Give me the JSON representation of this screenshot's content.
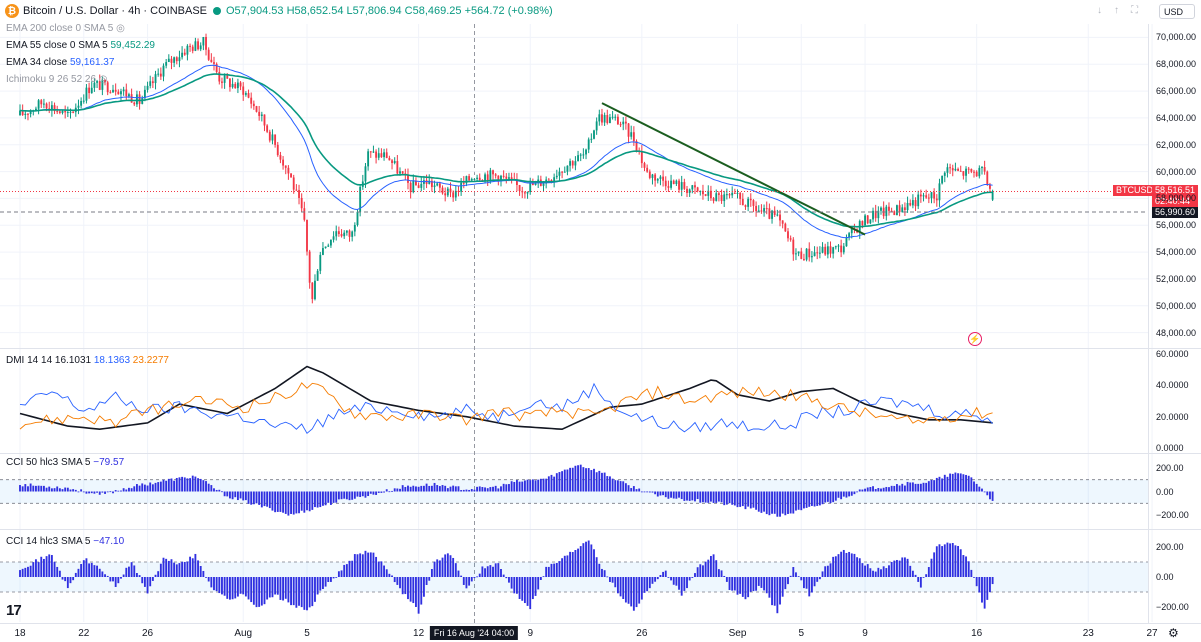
{
  "header": {
    "symbol_title": "Bitcoin / U.S. Dollar · 4h · COINBASE",
    "open": "O57,904.53",
    "high": "H58,652.54",
    "low": "L57,806.94",
    "close": "C58,469.25",
    "change": "+564.72 (+0.98%)",
    "currency": "USD",
    "icons": [
      "arrow-down-icon",
      "arrow-up-icon",
      "fullscreen-icon",
      "maximize-icon"
    ]
  },
  "legend": {
    "ema200": "EMA 200 close 0 SMA 5",
    "ema55_label": "EMA 55 close 0 SMA 5",
    "ema55_value": "59,452.29",
    "ema34_label": "EMA 34 close",
    "ema34_value": "59,161.37",
    "ichimoku": "Ichimoku 9 26 52 26"
  },
  "price_tags": {
    "symbol": "BTCUSD",
    "last_price": "58,516.51",
    "countdown": "02:40:44",
    "level": "56,990.60"
  },
  "dmi": {
    "title": "DMI 14 14",
    "adx": "16.1031",
    "plus_di": "18.1363",
    "minus_di": "23.2277"
  },
  "cci50": {
    "title": "CCI 50 hlc3 SMA 5",
    "value": "−79.57"
  },
  "cci14": {
    "title": "CCI 14 hlc3 SMA 5",
    "value": "−47.10"
  },
  "x_axis": {
    "ticks": [
      {
        "label": "18",
        "day": 0
      },
      {
        "label": "22",
        "day": 4
      },
      {
        "label": "26",
        "day": 8
      },
      {
        "label": "Aug",
        "day": 14
      },
      {
        "label": "5",
        "day": 18
      },
      {
        "label": "12",
        "day": 25
      },
      {
        "label": "9",
        "day": 32
      },
      {
        "label": "26",
        "day": 39
      },
      {
        "label": "Sep",
        "day": 45
      },
      {
        "label": "5",
        "day": 49
      },
      {
        "label": "9",
        "day": 53
      },
      {
        "label": "16",
        "day": 60
      },
      {
        "label": "23",
        "day": 67
      },
      {
        "label": "27",
        "day": 71
      }
    ],
    "cursor_label": "Fri 16 Aug '24   04:00"
  },
  "colors": {
    "up": "#089981",
    "down": "#f23645",
    "ema55": "#089981",
    "ema34": "#2962ff",
    "trendline": "#1b5e20",
    "adx": "#131722",
    "plus_di": "#2962ff",
    "minus_di": "#f57c00",
    "cci": "#2f2fe0"
  },
  "chart_data": [
    {
      "type": "candlestick",
      "title": "Bitcoin / U.S. Dollar · 4h · COINBASE",
      "ylim": [
        47000,
        71000
      ],
      "y_ticks": [
        "70,000.00",
        "68,000.00",
        "66,000.00",
        "64,000.00",
        "62,000.00",
        "60,000.00",
        "58,000.00",
        "56,000.00",
        "54,000.00",
        "52,000.00",
        "50,000.00",
        "48,000.00"
      ],
      "x_range_days": [
        0,
        72
      ],
      "anchors": [
        {
          "day": 0.0,
          "close": 64200
        },
        {
          "day": 1.5,
          "close": 65200
        },
        {
          "day": 3.0,
          "close": 64100
        },
        {
          "day": 4.5,
          "close": 66500
        },
        {
          "day": 6.0,
          "close": 66300
        },
        {
          "day": 7.5,
          "close": 65200
        },
        {
          "day": 9.0,
          "close": 67800
        },
        {
          "day": 10.5,
          "close": 69200
        },
        {
          "day": 11.5,
          "close": 69600
        },
        {
          "day": 12.5,
          "close": 67000
        },
        {
          "day": 14.0,
          "close": 66100
        },
        {
          "day": 15.0,
          "close": 64300
        },
        {
          "day": 16.0,
          "close": 62000
        },
        {
          "day": 17.0,
          "close": 59500
        },
        {
          "day": 17.8,
          "close": 56500
        },
        {
          "day": 18.3,
          "close": 50200
        },
        {
          "day": 18.8,
          "close": 54000
        },
        {
          "day": 19.8,
          "close": 55600
        },
        {
          "day": 20.8,
          "close": 55200
        },
        {
          "day": 21.8,
          "close": 61300
        },
        {
          "day": 23.0,
          "close": 61200
        },
        {
          "day": 24.5,
          "close": 58800
        },
        {
          "day": 25.5,
          "close": 59300
        },
        {
          "day": 27.0,
          "close": 58200
        },
        {
          "day": 28.5,
          "close": 59800
        },
        {
          "day": 30.0,
          "close": 59700
        },
        {
          "day": 31.5,
          "close": 58700
        },
        {
          "day": 33.0,
          "close": 59400
        },
        {
          "day": 34.5,
          "close": 60700
        },
        {
          "day": 35.5,
          "close": 61300
        },
        {
          "day": 36.2,
          "close": 64100
        },
        {
          "day": 37.5,
          "close": 63800
        },
        {
          "day": 38.5,
          "close": 62500
        },
        {
          "day": 39.3,
          "close": 59900
        },
        {
          "day": 40.5,
          "close": 59300
        },
        {
          "day": 42.0,
          "close": 58700
        },
        {
          "day": 43.5,
          "close": 58100
        },
        {
          "day": 45.0,
          "close": 58000
        },
        {
          "day": 46.5,
          "close": 57000
        },
        {
          "day": 47.5,
          "close": 56500
        },
        {
          "day": 48.7,
          "close": 53800
        },
        {
          "day": 50.0,
          "close": 54000
        },
        {
          "day": 51.5,
          "close": 54300
        },
        {
          "day": 52.5,
          "close": 55900
        },
        {
          "day": 53.5,
          "close": 56800
        },
        {
          "day": 55.0,
          "close": 57200
        },
        {
          "day": 56.5,
          "close": 58000
        },
        {
          "day": 57.5,
          "close": 58200
        },
        {
          "day": 58.0,
          "close": 60300
        },
        {
          "day": 59.0,
          "close": 59900
        },
        {
          "day": 60.3,
          "close": 60000
        },
        {
          "day": 61.0,
          "close": 58469.25
        }
      ],
      "last": {
        "open": 57904.53,
        "high": 58652.54,
        "low": 57806.94,
        "close": 58469.25
      },
      "trendline": [
        {
          "day": 36.5,
          "price": 65100
        },
        {
          "day": 53.0,
          "price": 55300
        }
      ],
      "horizontal_levels": [
        56990.6,
        58516.51
      ],
      "series": [
        {
          "name": "EMA 55",
          "value": 59452.29
        },
        {
          "name": "EMA 34",
          "value": 59161.37
        }
      ]
    },
    {
      "type": "line",
      "title": "DMI 14 14",
      "ylim": [
        0,
        60
      ],
      "y_ticks": [
        "60.0000",
        "40.0000",
        "20.0000",
        "0.0000"
      ],
      "series": [
        {
          "name": "ADX",
          "last": 16.1031,
          "anchors": [
            [
              0,
              22
            ],
            [
              3,
              14
            ],
            [
              5,
              12
            ],
            [
              8,
              16
            ],
            [
              10,
              28
            ],
            [
              13,
              22
            ],
            [
              16,
              38
            ],
            [
              18,
              52
            ],
            [
              19,
              48
            ],
            [
              22,
              30
            ],
            [
              25,
              24
            ],
            [
              28,
              20
            ],
            [
              31,
              14
            ],
            [
              34,
              12
            ],
            [
              37,
              26
            ],
            [
              39,
              28
            ],
            [
              42,
              38
            ],
            [
              43.5,
              44
            ],
            [
              45,
              34
            ],
            [
              47,
              30
            ],
            [
              49,
              36
            ],
            [
              51,
              38
            ],
            [
              53,
              28
            ],
            [
              55,
              22
            ],
            [
              57,
              18
            ],
            [
              59,
              18
            ],
            [
              61,
              16.1
            ]
          ]
        },
        {
          "name": "+DI",
          "last": 18.1363,
          "anchors": [
            [
              0,
              26
            ],
            [
              2,
              36
            ],
            [
              4,
              24
            ],
            [
              6,
              32
            ],
            [
              8,
              24
            ],
            [
              10,
              26
            ],
            [
              12,
              22
            ],
            [
              14,
              20
            ],
            [
              16,
              14
            ],
            [
              18,
              12
            ],
            [
              20,
              22
            ],
            [
              22,
              26
            ],
            [
              24,
              24
            ],
            [
              26,
              20
            ],
            [
              28,
              24
            ],
            [
              30,
              20
            ],
            [
              32,
              30
            ],
            [
              34,
              26
            ],
            [
              36,
              38
            ],
            [
              38,
              22
            ],
            [
              40,
              16
            ],
            [
              42,
              12
            ],
            [
              44,
              16
            ],
            [
              46,
              14
            ],
            [
              48,
              14
            ],
            [
              50,
              22
            ],
            [
              52,
              24
            ],
            [
              54,
              30
            ],
            [
              56,
              28
            ],
            [
              58,
              22
            ],
            [
              60,
              22
            ],
            [
              61,
              18.1
            ]
          ]
        },
        {
          "name": "−DI",
          "last": 23.2277,
          "anchors": [
            [
              0,
              16
            ],
            [
              2,
              18
            ],
            [
              4,
              20
            ],
            [
              6,
              16
            ],
            [
              8,
              24
            ],
            [
              10,
              28
            ],
            [
              12,
              30
            ],
            [
              14,
              26
            ],
            [
              16,
              32
            ],
            [
              18,
              40
            ],
            [
              19,
              36
            ],
            [
              21,
              22
            ],
            [
              24,
              20
            ],
            [
              26,
              22
            ],
            [
              28,
              18
            ],
            [
              30,
              24
            ],
            [
              32,
              20
            ],
            [
              34,
              24
            ],
            [
              36,
              20
            ],
            [
              38,
              30
            ],
            [
              40,
              36
            ],
            [
              42,
              30
            ],
            [
              44,
              34
            ],
            [
              46,
              36
            ],
            [
              48,
              34
            ],
            [
              50,
              30
            ],
            [
              52,
              24
            ],
            [
              54,
              20
            ],
            [
              56,
              16
            ],
            [
              58,
              20
            ],
            [
              60,
              22
            ],
            [
              61,
              23.2
            ]
          ]
        }
      ]
    },
    {
      "type": "bar",
      "title": "CCI 50 hlc3 SMA 5",
      "ylim": [
        -300,
        300
      ],
      "y_ticks": [
        "200.00",
        "0.00",
        "−200.00"
      ],
      "band": [
        -100,
        100
      ],
      "last": -79.57,
      "anchors": [
        [
          0,
          60
        ],
        [
          3,
          30
        ],
        [
          5,
          -30
        ],
        [
          7,
          40
        ],
        [
          9,
          90
        ],
        [
          11,
          130
        ],
        [
          13,
          -40
        ],
        [
          15,
          -120
        ],
        [
          17,
          -200
        ],
        [
          18,
          -160
        ],
        [
          20,
          -80
        ],
        [
          22,
          -30
        ],
        [
          24,
          40
        ],
        [
          26,
          60
        ],
        [
          28,
          20
        ],
        [
          30,
          40
        ],
        [
          31,
          80
        ],
        [
          33,
          110
        ],
        [
          35,
          230
        ],
        [
          36.5,
          160
        ],
        [
          38,
          60
        ],
        [
          40,
          -40
        ],
        [
          42,
          -70
        ],
        [
          44,
          -100
        ],
        [
          46,
          -150
        ],
        [
          47.5,
          -210
        ],
        [
          49,
          -160
        ],
        [
          51,
          -80
        ],
        [
          53,
          20
        ],
        [
          55,
          60
        ],
        [
          57,
          80
        ],
        [
          58.5,
          150
        ],
        [
          59.5,
          140
        ],
        [
          61,
          -79.57
        ]
      ]
    },
    {
      "type": "bar",
      "title": "CCI 14 hlc3 SMA 5",
      "ylim": [
        -300,
        300
      ],
      "y_ticks": [
        "200.00",
        "0.00",
        "−200.00"
      ],
      "band": [
        -100,
        100
      ],
      "last": -47.1,
      "anchors": [
        [
          0,
          60
        ],
        [
          2,
          150
        ],
        [
          3,
          -80
        ],
        [
          4,
          120
        ],
        [
          5,
          60
        ],
        [
          6,
          -60
        ],
        [
          7,
          100
        ],
        [
          8,
          -100
        ],
        [
          9,
          120
        ],
        [
          10,
          90
        ],
        [
          11,
          140
        ],
        [
          12,
          -60
        ],
        [
          13,
          -150
        ],
        [
          14,
          -120
        ],
        [
          15,
          -200
        ],
        [
          16,
          -120
        ],
        [
          17,
          -180
        ],
        [
          18,
          -230
        ],
        [
          19,
          -80
        ],
        [
          20,
          30
        ],
        [
          21,
          140
        ],
        [
          22,
          170
        ],
        [
          23,
          60
        ],
        [
          24,
          -100
        ],
        [
          25,
          -230
        ],
        [
          26,
          100
        ],
        [
          27,
          160
        ],
        [
          28,
          -80
        ],
        [
          29,
          60
        ],
        [
          30,
          80
        ],
        [
          31,
          -100
        ],
        [
          32,
          -200
        ],
        [
          33,
          60
        ],
        [
          34,
          120
        ],
        [
          35,
          200
        ],
        [
          35.7,
          260
        ],
        [
          36.5,
          60
        ],
        [
          37.5,
          -100
        ],
        [
          38.5,
          -220
        ],
        [
          39.5,
          -60
        ],
        [
          40.5,
          40
        ],
        [
          41.5,
          -120
        ],
        [
          42.5,
          60
        ],
        [
          43.5,
          140
        ],
        [
          44.5,
          -80
        ],
        [
          45.5,
          -140
        ],
        [
          46.5,
          -60
        ],
        [
          47.5,
          -230
        ],
        [
          48.5,
          60
        ],
        [
          49.5,
          -120
        ],
        [
          50.5,
          60
        ],
        [
          51.5,
          180
        ],
        [
          52.5,
          140
        ],
        [
          53.5,
          40
        ],
        [
          54.5,
          80
        ],
        [
          55.5,
          140
        ],
        [
          56.5,
          -60
        ],
        [
          57.5,
          200
        ],
        [
          58.5,
          240
        ],
        [
          59.5,
          100
        ],
        [
          60.5,
          -220
        ],
        [
          61,
          -47.1
        ]
      ]
    }
  ]
}
